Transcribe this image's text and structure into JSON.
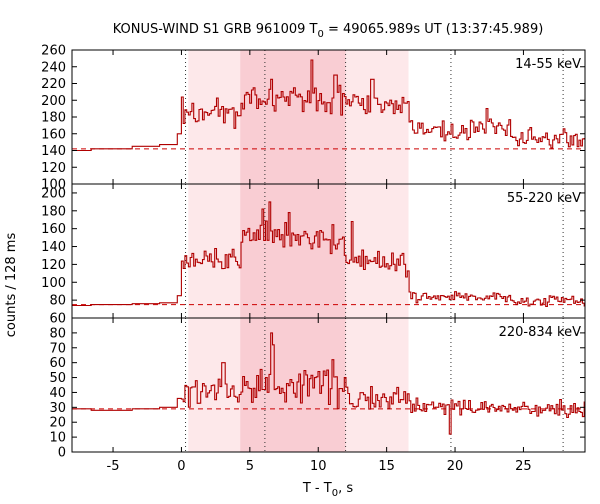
{
  "chart_data": {
    "type": "line",
    "title": {
      "prefix": "KONUS-WIND S1 GRB 961009 T",
      "sub": "0",
      "suffix": " = 49065.989s UT (13:37:45.989)"
    },
    "xlabel": {
      "prefix": "T - T",
      "sub": "0",
      "suffix": ", s"
    },
    "ylabel": "counts / 128 ms",
    "xlim": [
      -8,
      29.5
    ],
    "x_ticks": [
      -5,
      0,
      5,
      10,
      15,
      20,
      25
    ],
    "vertical_markers": [
      0.3,
      6.1,
      12.0,
      19.7,
      27.9
    ],
    "shaded_intervals": [
      {
        "from": 0.5,
        "to": 16.6,
        "level": "light"
      },
      {
        "from": 4.3,
        "to": 12.0,
        "level": "dark"
      }
    ],
    "colors": {
      "series": "#b00000",
      "background_line": "#cc0000",
      "shade_light": "#fde8ea",
      "shade_dark": "#f9cdd3",
      "marker": "#333333"
    },
    "panels": [
      {
        "band": "14-55 keV",
        "ylim": [
          100,
          260
        ],
        "y_ticks": [
          100,
          120,
          140,
          160,
          180,
          200,
          220,
          240,
          260
        ],
        "background_level": 142,
        "pre_burst_steps": [
          [
            -8,
            140
          ],
          [
            -6.6,
            142
          ],
          [
            -3.6,
            145
          ],
          [
            -1.6,
            147
          ],
          [
            -0.3,
            160
          ]
        ],
        "phases": [
          {
            "from": 0,
            "to": 4.3,
            "mean": 185,
            "jitter": 14
          },
          {
            "from": 4.3,
            "to": 12,
            "mean": 200,
            "jitter": 17
          },
          {
            "from": 12,
            "to": 16.6,
            "mean": 195,
            "jitter": 13
          },
          {
            "from": 16.6,
            "to": 24,
            "mean": 165,
            "jitter": 11
          },
          {
            "from": 24,
            "to": 29.5,
            "mean": 153,
            "jitter": 11
          }
        ],
        "peaks": [
          [
            9.5,
            248
          ],
          [
            11.2,
            230
          ],
          [
            13.9,
            225
          ],
          [
            6.5,
            225
          ],
          [
            22.3,
            190
          ]
        ]
      },
      {
        "band": "55-220 keV",
        "ylim": [
          60,
          210
        ],
        "y_ticks": [
          60,
          80,
          100,
          120,
          140,
          160,
          180,
          200
        ],
        "background_level": 75,
        "pre_burst_steps": [
          [
            -8,
            74
          ],
          [
            -6.6,
            75
          ],
          [
            -3.6,
            76
          ],
          [
            -1.6,
            77
          ],
          [
            -0.3,
            85
          ]
        ],
        "phases": [
          {
            "from": 0,
            "to": 4.3,
            "mean": 125,
            "jitter": 12
          },
          {
            "from": 4.3,
            "to": 12,
            "mean": 150,
            "jitter": 16
          },
          {
            "from": 12,
            "to": 16.6,
            "mean": 122,
            "jitter": 13
          },
          {
            "from": 16.6,
            "to": 24,
            "mean": 84,
            "jitter": 6
          },
          {
            "from": 24,
            "to": 29.5,
            "mean": 79,
            "jitter": 5
          }
        ],
        "peaks": [
          [
            6.4,
            190
          ],
          [
            5.9,
            182
          ],
          [
            7.8,
            178
          ],
          [
            12.4,
            168
          ],
          [
            10.1,
            158
          ]
        ]
      },
      {
        "band": "220-834 keV",
        "ylim": [
          0,
          90
        ],
        "y_ticks": [
          0,
          10,
          20,
          30,
          40,
          50,
          60,
          70,
          80
        ],
        "background_level": 29,
        "pre_burst_steps": [
          [
            -8,
            29
          ],
          [
            -6.6,
            28
          ],
          [
            -3.6,
            29
          ],
          [
            -1.6,
            30
          ],
          [
            -0.3,
            36
          ]
        ],
        "phases": [
          {
            "from": 0,
            "to": 4.3,
            "mean": 40,
            "jitter": 9
          },
          {
            "from": 4.3,
            "to": 12,
            "mean": 45,
            "jitter": 11
          },
          {
            "from": 12,
            "to": 16.6,
            "mean": 36,
            "jitter": 7
          },
          {
            "from": 16.6,
            "to": 24,
            "mean": 30,
            "jitter": 5
          },
          {
            "from": 24,
            "to": 29.5,
            "mean": 29,
            "jitter": 5
          }
        ],
        "peaks": [
          [
            6.5,
            80
          ],
          [
            6.7,
            72
          ],
          [
            11.0,
            62
          ],
          [
            3.0,
            60
          ],
          [
            19.6,
            12
          ]
        ]
      }
    ]
  }
}
